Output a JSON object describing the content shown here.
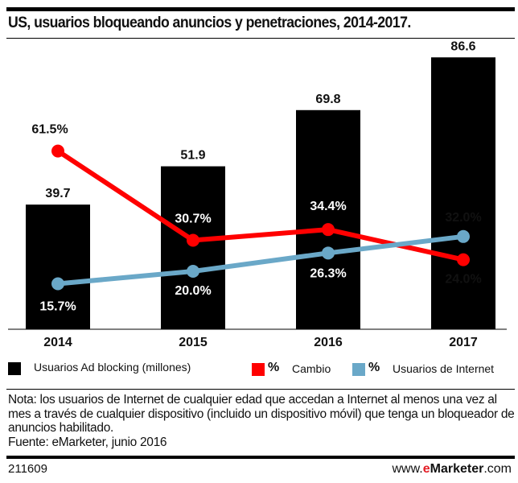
{
  "chart_data": {
    "type": "bar+line",
    "title": "US, usuarios bloqueando anuncios y penetraciones, 2014-2017.",
    "categories": [
      "2014",
      "2015",
      "2016",
      "2017"
    ],
    "series": [
      {
        "name": "Usuarios Ad blocking (millones)",
        "type": "bar",
        "color": "#000000",
        "values": [
          39.7,
          51.9,
          69.8,
          86.6
        ],
        "labels": [
          "39.7",
          "51.9",
          "69.8",
          "86.6"
        ]
      },
      {
        "name": "% Cambio",
        "type": "line",
        "color": "#ff0000",
        "values": [
          61.5,
          30.7,
          34.4,
          24.0
        ],
        "labels": [
          "61.5%",
          "30.7%",
          "34.4%",
          "24.0%"
        ]
      },
      {
        "name": "% Usuarios de Internet",
        "type": "line",
        "color": "#6aa8c8",
        "values": [
          15.7,
          20.0,
          26.3,
          32.0
        ],
        "labels": [
          "15.7%",
          "20.0%",
          "26.3%",
          "32.0%"
        ]
      }
    ],
    "grid": false,
    "legend_placement": "bottom"
  },
  "legend": {
    "bar": "Usuarios Ad blocking (millones)",
    "red_pct": "%",
    "red": "Cambio",
    "blue_pct": "%",
    "blue": "Usuarios de Internet"
  },
  "note": "Nota: los usuarios de Internet  de cualquier edad que accedan a Internet  al menos una vez al mes a través de cualquier dispositivo (incluido un dispositivo móvil) que tenga un bloqueador de anuncios habilitado.",
  "source": "Fuente: eMarketer, junio 2016",
  "footer": {
    "code": "211609",
    "brand_pre": "www.",
    "brand_e": "e",
    "brand_mid": "Marketer",
    "brand_post": ".com"
  }
}
